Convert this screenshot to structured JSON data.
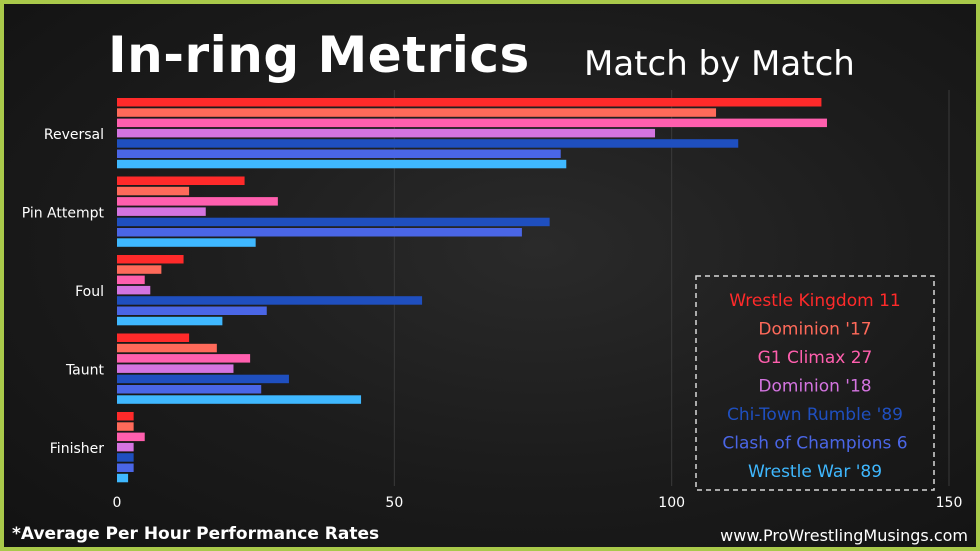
{
  "header": {
    "title": "In-ring Metrics",
    "subtitle": "Match by Match"
  },
  "footer": {
    "footnote": "*Average Per Hour Performance Rates",
    "website": "www.ProWrestlingMusings.com"
  },
  "chart_data": {
    "type": "bar",
    "orientation": "horizontal",
    "title": "In-ring Metrics",
    "subtitle": "Match by Match",
    "categories": [
      "Reversal",
      "Pin Attempt",
      "Foul",
      "Taunt",
      "Finisher"
    ],
    "xlim": [
      0,
      150
    ],
    "xticks": [
      0,
      50,
      100,
      150
    ],
    "grid": true,
    "legend_position": "right",
    "series": [
      {
        "name": "Wrestle Kingdom 11",
        "color": "#ff2a2a",
        "values": [
          127,
          23,
          12,
          13,
          3
        ]
      },
      {
        "name": "Dominion '17",
        "color": "#ff6a5a",
        "values": [
          108,
          13,
          8,
          18,
          3
        ]
      },
      {
        "name": "G1 Climax 27",
        "color": "#ff5fae",
        "values": [
          128,
          29,
          5,
          24,
          5
        ]
      },
      {
        "name": "Dominion '18",
        "color": "#d474e0",
        "values": [
          97,
          16,
          6,
          21,
          3
        ]
      },
      {
        "name": "Chi-Town Rumble '89",
        "color": "#1f4fbf",
        "values": [
          112,
          78,
          55,
          31,
          3
        ]
      },
      {
        "name": "Clash of Champions 6",
        "color": "#4a66e6",
        "values": [
          80,
          73,
          27,
          26,
          3
        ]
      },
      {
        "name": "Wrestle War '89",
        "color": "#3fb8ff",
        "values": [
          81,
          25,
          19,
          44,
          2
        ]
      }
    ]
  }
}
